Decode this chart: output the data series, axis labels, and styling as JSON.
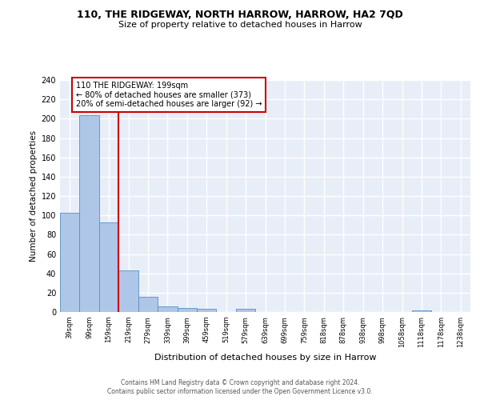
{
  "title": "110, THE RIDGEWAY, NORTH HARROW, HARROW, HA2 7QD",
  "subtitle": "Size of property relative to detached houses in Harrow",
  "xlabel": "Distribution of detached houses by size in Harrow",
  "ylabel": "Number of detached properties",
  "categories": [
    "39sqm",
    "99sqm",
    "159sqm",
    "219sqm",
    "279sqm",
    "339sqm",
    "399sqm",
    "459sqm",
    "519sqm",
    "579sqm",
    "639sqm",
    "699sqm",
    "759sqm",
    "818sqm",
    "878sqm",
    "938sqm",
    "998sqm",
    "1058sqm",
    "1118sqm",
    "1178sqm",
    "1238sqm"
  ],
  "values": [
    103,
    204,
    93,
    43,
    16,
    6,
    4,
    3,
    0,
    3,
    0,
    0,
    0,
    0,
    0,
    0,
    0,
    0,
    2,
    0,
    0
  ],
  "bar_color": "#aec6e8",
  "bar_edge_color": "#5a8fc2",
  "background_color": "#e8eef8",
  "grid_color": "#ffffff",
  "vline_color": "#cc0000",
  "annotation_box_edge": "#cc0000",
  "ylim": [
    0,
    240
  ],
  "yticks": [
    0,
    20,
    40,
    60,
    80,
    100,
    120,
    140,
    160,
    180,
    200,
    220,
    240
  ],
  "annotation_line1": "110 THE RIDGEWAY: 199sqm",
  "annotation_line2": "← 80% of detached houses are smaller (373)",
  "annotation_line3": "20% of semi-detached houses are larger (92) →",
  "footer_line1": "Contains HM Land Registry data © Crown copyright and database right 2024.",
  "footer_line2": "Contains public sector information licensed under the Open Government Licence v3.0."
}
